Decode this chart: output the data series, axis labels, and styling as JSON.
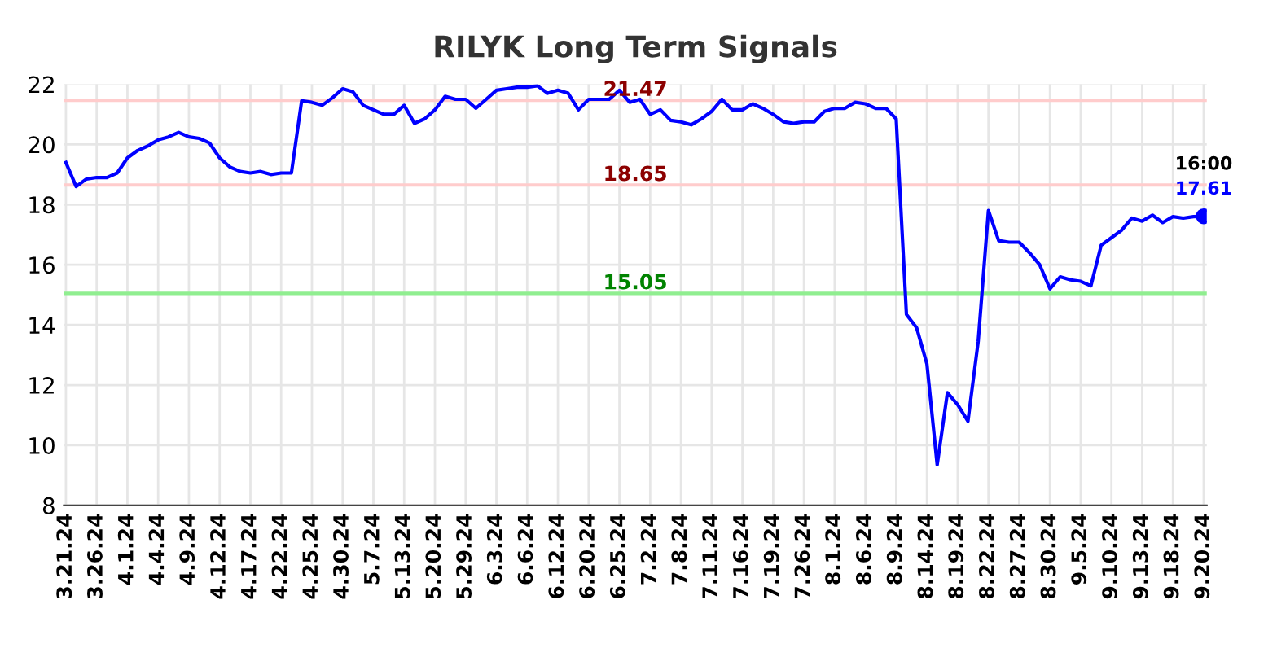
{
  "chart_data": {
    "type": "line",
    "title": "RILYK Long Term Signals",
    "categories": [
      "3.21.24",
      null,
      null,
      "3.26.24",
      null,
      null,
      "4.1.24",
      null,
      null,
      "4.4.24",
      null,
      null,
      "4.9.24",
      null,
      null,
      "4.12.24",
      null,
      null,
      "4.17.24",
      null,
      null,
      "4.22.24",
      null,
      null,
      "4.25.24",
      null,
      null,
      "4.30.24",
      null,
      null,
      "5.7.24",
      null,
      null,
      "5.13.24",
      null,
      null,
      "5.20.24",
      null,
      null,
      "5.29.24",
      null,
      null,
      "6.3.24",
      null,
      null,
      "6.6.24",
      null,
      null,
      "6.12.24",
      null,
      null,
      "6.20.24",
      null,
      null,
      "6.25.24",
      null,
      null,
      "7.2.24",
      null,
      null,
      "7.8.24",
      null,
      null,
      "7.11.24",
      null,
      null,
      "7.16.24",
      null,
      null,
      "7.19.24",
      null,
      null,
      "7.26.24",
      null,
      null,
      "8.1.24",
      null,
      null,
      "8.6.24",
      null,
      null,
      "8.9.24",
      null,
      null,
      "8.14.24",
      null,
      null,
      "8.19.24",
      null,
      null,
      "8.22.24",
      null,
      null,
      "8.27.24",
      null,
      null,
      "8.30.24",
      null,
      null,
      "9.5.24",
      null,
      null,
      "9.10.24",
      null,
      null,
      "9.13.24",
      null,
      null,
      "9.18.24",
      null,
      null,
      "9.20.24"
    ],
    "series": [
      {
        "color": "#0000ff",
        "values": [
          19.4,
          18.6,
          18.85,
          18.9,
          18.9,
          19.05,
          19.55,
          19.8,
          19.95,
          20.15,
          20.25,
          20.4,
          20.25,
          20.2,
          20.05,
          19.55,
          19.25,
          19.1,
          19.05,
          19.1,
          19.0,
          19.05,
          19.05,
          21.45,
          21.4,
          21.3,
          21.55,
          21.85,
          21.75,
          21.3,
          21.15,
          21.0,
          21.0,
          21.3,
          20.7,
          20.85,
          21.15,
          21.6,
          21.5,
          21.5,
          21.2,
          21.5,
          21.8,
          21.85,
          21.9,
          21.9,
          21.95,
          21.7,
          21.8,
          21.7,
          21.15,
          21.5,
          21.5,
          21.5,
          21.8,
          21.4,
          21.5,
          21.0,
          21.15,
          20.8,
          20.75,
          20.65,
          20.85,
          21.1,
          21.5,
          21.15,
          21.15,
          21.35,
          21.2,
          21.0,
          20.75,
          20.7,
          20.75,
          20.75,
          21.1,
          21.2,
          21.2,
          21.4,
          21.35,
          21.2,
          21.2,
          20.85,
          14.35,
          13.9,
          12.7,
          9.35,
          11.75,
          11.35,
          10.8,
          13.45,
          17.8,
          16.8,
          16.75,
          16.75,
          16.4,
          16.0,
          15.2,
          15.6,
          15.5,
          15.45,
          15.3,
          16.65,
          16.9,
          17.15,
          17.55,
          17.45,
          17.65,
          17.4,
          17.6,
          17.55,
          17.6,
          17.61
        ],
        "value_labels": [
          null,
          null,
          null,
          null,
          null,
          null,
          null,
          null,
          null,
          null,
          null,
          null,
          null,
          null,
          null,
          null,
          null,
          null,
          null,
          null,
          null,
          null,
          null,
          null,
          null,
          null,
          null,
          null,
          null,
          null,
          null,
          null,
          null,
          null,
          null,
          null,
          null,
          null,
          null,
          null,
          null,
          null,
          null,
          null,
          null,
          null,
          null,
          null,
          null,
          null,
          null,
          null,
          null,
          null,
          null,
          null,
          null,
          null,
          null,
          null,
          null,
          null,
          null,
          null,
          null,
          null,
          null,
          null,
          null,
          null,
          null,
          null,
          null,
          null,
          null,
          null,
          null,
          null,
          null,
          null,
          null,
          null,
          null,
          null,
          null,
          null,
          null,
          null,
          null,
          null,
          null,
          null,
          null,
          null,
          null,
          null,
          null,
          null,
          null,
          null,
          null,
          null,
          null,
          null,
          null,
          null,
          null,
          null,
          null,
          null,
          null,
          "17.61"
        ]
      }
    ],
    "annotations": [
      {
        "text": "16:00",
        "x": "9.20.24",
        "y": 17.61
      }
    ],
    "ref_lines": [
      {
        "axis": "y",
        "value": 21.47,
        "label": "21.47",
        "color": "#ffcccc"
      },
      {
        "axis": "y",
        "value": 18.65,
        "label": "18.65",
        "color": "#ffcccc"
      },
      {
        "axis": "y",
        "value": 15.05,
        "label": "15.05",
        "color": "#90ee90"
      }
    ],
    "ylim": [
      8,
      22
    ],
    "yticks": [
      8,
      10,
      12,
      14,
      16,
      18,
      20,
      22
    ],
    "grid": true,
    "legend": false,
    "marker": "none",
    "line_style": "solid"
  }
}
